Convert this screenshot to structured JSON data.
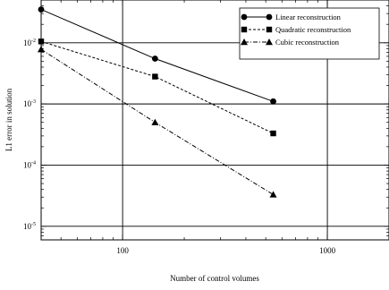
{
  "chart_data": {
    "type": "line",
    "xlabel": "Number of control volumes",
    "ylabel": "L1 error in solution",
    "x_scale": "log",
    "y_scale": "log",
    "xlim": [
      40,
      2000
    ],
    "ylim": [
      6e-06,
      0.05
    ],
    "grid": true,
    "legend_position": "top-right",
    "x_ticks": [
      {
        "value": 100,
        "label": "100"
      },
      {
        "value": 1000,
        "label": "1000"
      }
    ],
    "y_ticks": [
      {
        "value": 0.01,
        "base": "10",
        "exp": "-2"
      },
      {
        "value": 0.001,
        "base": "10",
        "exp": "-3"
      },
      {
        "value": 0.0001,
        "base": "10",
        "exp": "-4"
      },
      {
        "value": 1e-05,
        "base": "10",
        "exp": "-5"
      }
    ],
    "series": [
      {
        "name": "Linear reconstruction",
        "marker": "circle",
        "dash": "solid",
        "x": [
          40,
          144,
          544
        ],
        "y": [
          0.035,
          0.0055,
          0.0011
        ]
      },
      {
        "name": "Quadratic reconstruction",
        "marker": "square",
        "dash": "dashed",
        "x": [
          40,
          144,
          544
        ],
        "y": [
          0.0105,
          0.0028,
          0.00033
        ]
      },
      {
        "name": "Cubic reconstruction",
        "marker": "triangle",
        "dash": "dashdot",
        "x": [
          40,
          144,
          544
        ],
        "y": [
          0.0078,
          0.0005,
          3.3e-05
        ]
      }
    ]
  }
}
